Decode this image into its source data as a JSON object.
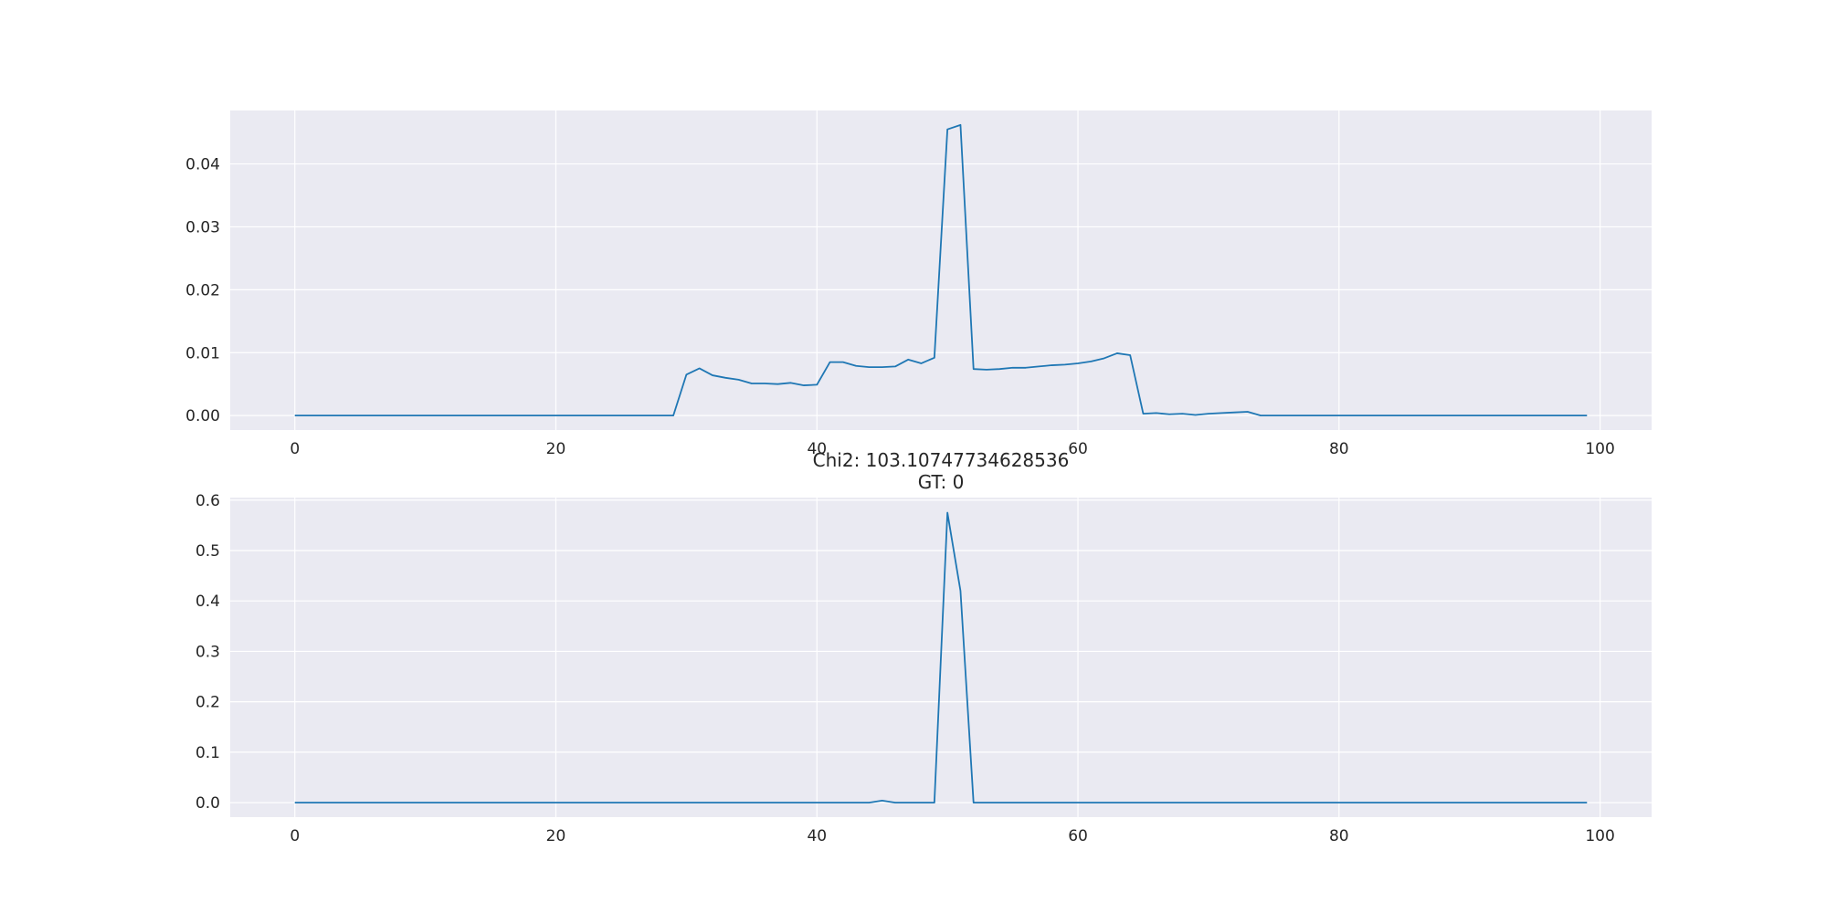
{
  "chart_data": [
    {
      "type": "line",
      "title": "",
      "xlabel": "",
      "ylabel": "",
      "xlim": [
        -4.95,
        103.95
      ],
      "ylim": [
        -0.0023,
        0.0485
      ],
      "xticks": [
        0,
        20,
        40,
        60,
        80,
        100
      ],
      "xtick_labels": [
        "0",
        "20",
        "40",
        "60",
        "80",
        "100"
      ],
      "yticks": [
        0.0,
        0.01,
        0.02,
        0.03,
        0.04
      ],
      "ytick_labels": [
        "0.00",
        "0.01",
        "0.02",
        "0.03",
        "0.04"
      ],
      "grid": true,
      "background": "#eaeaf2",
      "line_color": "#1f77b4",
      "series": [
        {
          "x": [
            0,
            1,
            2,
            3,
            4,
            5,
            6,
            7,
            8,
            9,
            10,
            11,
            12,
            13,
            14,
            15,
            16,
            17,
            18,
            19,
            20,
            21,
            22,
            23,
            24,
            25,
            26,
            27,
            28,
            29,
            30,
            31,
            32,
            33,
            34,
            35,
            36,
            37,
            38,
            39,
            40,
            41,
            42,
            43,
            44,
            45,
            46,
            47,
            48,
            49,
            50,
            51,
            52,
            53,
            54,
            55,
            56,
            57,
            58,
            59,
            60,
            61,
            62,
            63,
            64,
            65,
            66,
            67,
            68,
            69,
            70,
            71,
            72,
            73,
            74,
            75,
            76,
            77,
            78,
            79,
            80,
            81,
            82,
            83,
            84,
            85,
            86,
            87,
            88,
            89,
            90,
            91,
            92,
            93,
            94,
            95,
            96,
            97,
            98,
            99
          ],
          "values": [
            0,
            0,
            0,
            0,
            0,
            0,
            0,
            0,
            0,
            0,
            0,
            0,
            0,
            0,
            0,
            0,
            0,
            0,
            0,
            0,
            0,
            0,
            0,
            0,
            0,
            0,
            0,
            0,
            0,
            0,
            0.0065,
            0.0075,
            0.0064,
            0.006,
            0.0057,
            0.0051,
            0.0051,
            0.005,
            0.0052,
            0.0048,
            0.0049,
            0.0085,
            0.0085,
            0.0079,
            0.0077,
            0.0077,
            0.0078,
            0.0089,
            0.0083,
            0.0092,
            0.0455,
            0.0462,
            0.0074,
            0.0073,
            0.0074,
            0.0076,
            0.0076,
            0.0078,
            0.008,
            0.0081,
            0.0083,
            0.0086,
            0.0091,
            0.0099,
            0.0096,
            0.0003,
            0.0004,
            0.0002,
            0.0003,
            0.0001,
            0.0003,
            0.0004,
            0.0005,
            0.0006,
            0,
            0,
            0,
            0,
            0,
            0,
            0,
            0,
            0,
            0,
            0,
            0,
            0,
            0,
            0,
            0,
            0,
            0,
            0,
            0,
            0,
            0,
            0,
            0,
            0,
            0
          ]
        }
      ]
    },
    {
      "type": "line",
      "title": "Chi2: 103.10747734628536\nGT: 0",
      "title_lines": [
        "Chi2: 103.10747734628536",
        "GT: 0"
      ],
      "xlabel": "",
      "ylabel": "",
      "xlim": [
        -4.95,
        103.95
      ],
      "ylim": [
        -0.0288,
        0.605
      ],
      "xticks": [
        0,
        20,
        40,
        60,
        80,
        100
      ],
      "xtick_labels": [
        "0",
        "20",
        "40",
        "60",
        "80",
        "100"
      ],
      "yticks": [
        0.0,
        0.1,
        0.2,
        0.3,
        0.4,
        0.5,
        0.6
      ],
      "ytick_labels": [
        "0.0",
        "0.1",
        "0.2",
        "0.3",
        "0.4",
        "0.5",
        "0.6"
      ],
      "grid": true,
      "background": "#eaeaf2",
      "line_color": "#1f77b4",
      "series": [
        {
          "x": [
            0,
            1,
            2,
            3,
            4,
            5,
            6,
            7,
            8,
            9,
            10,
            11,
            12,
            13,
            14,
            15,
            16,
            17,
            18,
            19,
            20,
            21,
            22,
            23,
            24,
            25,
            26,
            27,
            28,
            29,
            30,
            31,
            32,
            33,
            34,
            35,
            36,
            37,
            38,
            39,
            40,
            41,
            42,
            43,
            44,
            45,
            46,
            47,
            48,
            49,
            50,
            51,
            52,
            53,
            54,
            55,
            56,
            57,
            58,
            59,
            60,
            61,
            62,
            63,
            64,
            65,
            66,
            67,
            68,
            69,
            70,
            71,
            72,
            73,
            74,
            75,
            76,
            77,
            78,
            79,
            80,
            81,
            82,
            83,
            84,
            85,
            86,
            87,
            88,
            89,
            90,
            91,
            92,
            93,
            94,
            95,
            96,
            97,
            98,
            99
          ],
          "values": [
            0,
            0,
            0,
            0,
            0,
            0,
            0,
            0,
            0,
            0,
            0,
            0,
            0,
            0,
            0,
            0,
            0,
            0,
            0,
            0,
            0,
            0,
            0,
            0,
            0,
            0,
            0,
            0,
            0,
            0,
            0,
            0,
            0,
            0,
            0,
            0,
            0,
            0,
            0,
            0,
            0,
            0,
            0,
            0,
            0,
            0.004,
            0,
            0,
            0,
            0,
            0.575,
            0.42,
            0,
            0,
            0,
            0,
            0,
            0,
            0,
            0,
            0,
            0,
            0,
            0,
            0,
            0,
            0,
            0,
            0,
            0,
            0,
            0,
            0,
            0,
            0,
            0,
            0,
            0,
            0,
            0,
            0,
            0,
            0,
            0,
            0,
            0,
            0,
            0,
            0,
            0,
            0,
            0,
            0,
            0,
            0,
            0,
            0,
            0,
            0,
            0
          ]
        }
      ]
    }
  ]
}
